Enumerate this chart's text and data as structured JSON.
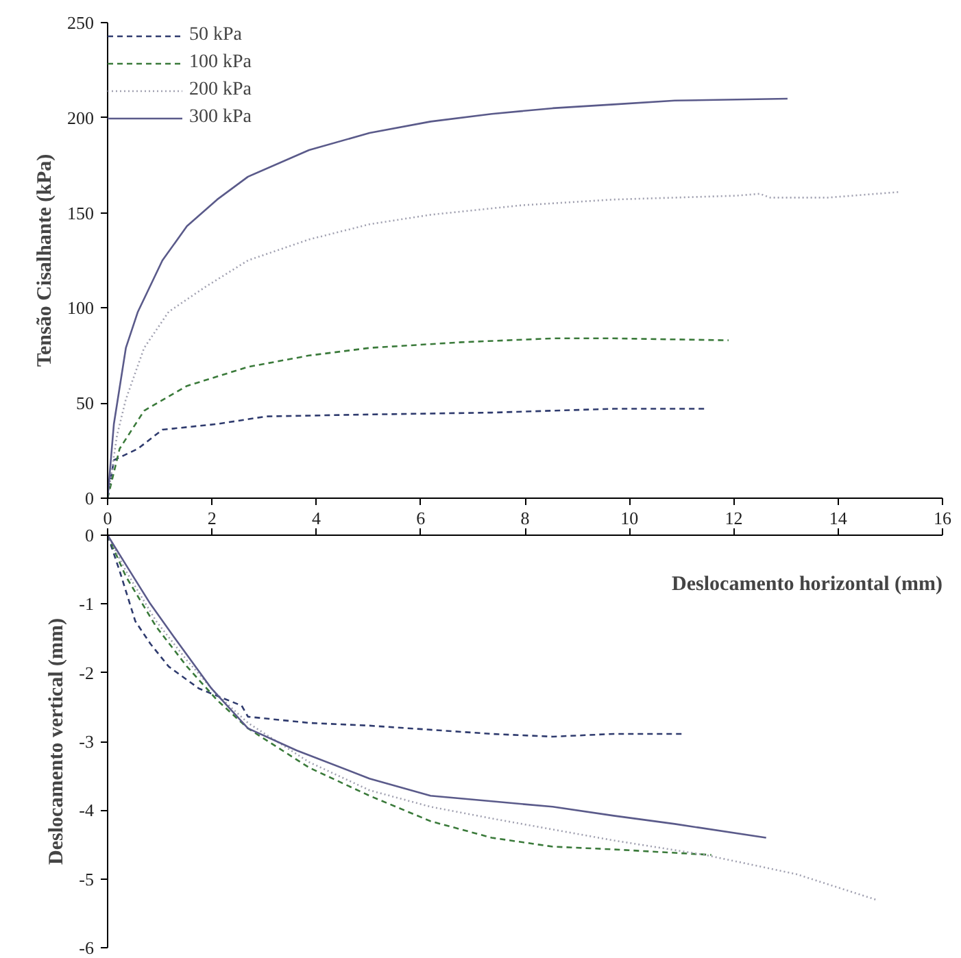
{
  "chart_data": [
    {
      "type": "line",
      "ylabel": "Tensão Cisalhante (kPa)",
      "xlim": [
        0,
        16
      ],
      "xticks": [
        0,
        2,
        4,
        6,
        8,
        10,
        12,
        14,
        16
      ],
      "ylim": [
        0,
        250
      ],
      "yticks": [
        0,
        50,
        100,
        150,
        200,
        250
      ],
      "grid": false,
      "legend": "top left",
      "series": [
        {
          "name": "50 kPa",
          "color": "#2f3b6e",
          "line_style": "dashed",
          "x": [
            0,
            0.12,
            0.58,
            1.05,
            2.1,
            3.04,
            5.02,
            7.36,
            9.7,
            11.45
          ],
          "values": [
            0,
            20,
            26,
            36,
            39,
            43,
            44,
            45,
            47,
            47
          ]
        },
        {
          "name": "100 kPa",
          "color": "#3a7a3a",
          "line_style": "dashed",
          "x": [
            0,
            0.23,
            0.7,
            1.52,
            2.69,
            3.86,
            5.02,
            6.78,
            8.53,
            9.7,
            11.9
          ],
          "values": [
            0,
            26,
            46,
            59,
            69,
            75,
            79,
            82,
            84,
            84,
            83
          ]
        },
        {
          "name": "200 kPa",
          "color": "#a0a0b0",
          "line_style": "dotted",
          "x": [
            0,
            0.18,
            0.35,
            0.7,
            1.17,
            1.87,
            2.69,
            3.86,
            5.02,
            6.19,
            7.94,
            9.7,
            12.04,
            12.5,
            12.7,
            13.8,
            15.19
          ],
          "values": [
            0,
            33,
            52,
            79,
            98,
            111,
            125,
            136,
            144,
            149,
            154,
            157,
            159,
            160,
            158,
            158,
            161
          ]
        },
        {
          "name": "300 kPa",
          "color": "#5a5a8a",
          "line_style": "solid",
          "x": [
            0,
            0.12,
            0.35,
            0.58,
            1.05,
            1.52,
            2.1,
            2.69,
            3.86,
            5.02,
            6.19,
            7.36,
            8.53,
            9.7,
            10.87,
            13.03
          ],
          "values": [
            0,
            39,
            79,
            98,
            125,
            143,
            157,
            169,
            183,
            192,
            198,
            202,
            205,
            207,
            209,
            210
          ]
        }
      ]
    },
    {
      "type": "line",
      "xlabel": "Deslocamento horizontal (mm)",
      "ylabel": "Deslocamento vertical (mm)",
      "xlim": [
        0,
        16
      ],
      "xticks": [
        {
          "value": 0,
          "label": null
        },
        {
          "value": 2,
          "label": null
        },
        {
          "value": 4,
          "label": null
        },
        {
          "value": 6,
          "label": null
        },
        {
          "value": 8,
          "label": null
        },
        {
          "value": 10,
          "label": null
        },
        {
          "value": 12,
          "label": null
        },
        {
          "value": 14,
          "label": null
        },
        {
          "value": 16,
          "label": null
        }
      ],
      "ylim": [
        -6,
        0
      ],
      "yticks": [
        -6,
        -5,
        -4,
        -3,
        -2,
        -1,
        0
      ],
      "grid": false,
      "tick_labels": "y",
      "series": [
        {
          "color": "#2f3b6e",
          "line_style": "dashed",
          "x": [
            0,
            0.23,
            0.53,
            0.82,
            1.17,
            1.75,
            2.57,
            2.69,
            3.86,
            5.02,
            7.36,
            8.53,
            9.7,
            11.0
          ],
          "values": [
            0,
            -0.52,
            -1.25,
            -1.58,
            -1.91,
            -2.23,
            -2.48,
            -2.64,
            -2.73,
            -2.77,
            -2.89,
            -2.93,
            -2.89,
            -2.89
          ]
        },
        {
          "color": "#3a7a3a",
          "line_style": "dashed",
          "x": [
            0,
            0.35,
            0.93,
            1.52,
            2.1,
            2.69,
            3.86,
            5.02,
            6.19,
            7.36,
            8.53,
            9.7,
            11.57
          ],
          "values": [
            0,
            -0.6,
            -1.33,
            -1.91,
            -2.4,
            -2.81,
            -3.38,
            -3.79,
            -4.16,
            -4.4,
            -4.53,
            -4.57,
            -4.65
          ]
        },
        {
          "color": "#a0a0b0",
          "line_style": "dotted",
          "x": [
            0,
            0.35,
            0.93,
            1.52,
            2.1,
            2.69,
            3.86,
            5.02,
            6.19,
            7.36,
            8.53,
            9.7,
            11.45,
            13.2,
            14.72
          ],
          "values": [
            0,
            -0.52,
            -1.25,
            -1.82,
            -2.32,
            -2.73,
            -3.3,
            -3.71,
            -3.95,
            -4.12,
            -4.28,
            -4.44,
            -4.65,
            -4.93,
            -5.3
          ]
        },
        {
          "color": "#5a5a8a",
          "line_style": "solid",
          "x": [
            0,
            0.35,
            0.82,
            1.29,
            1.99,
            2.69,
            3.62,
            5.02,
            6.19,
            7.36,
            8.53,
            9.7,
            10.87,
            12.62
          ],
          "values": [
            0,
            -0.43,
            -1.0,
            -1.5,
            -2.23,
            -2.81,
            -3.13,
            -3.54,
            -3.79,
            -3.87,
            -3.95,
            -4.08,
            -4.2,
            -4.4
          ]
        }
      ]
    }
  ]
}
